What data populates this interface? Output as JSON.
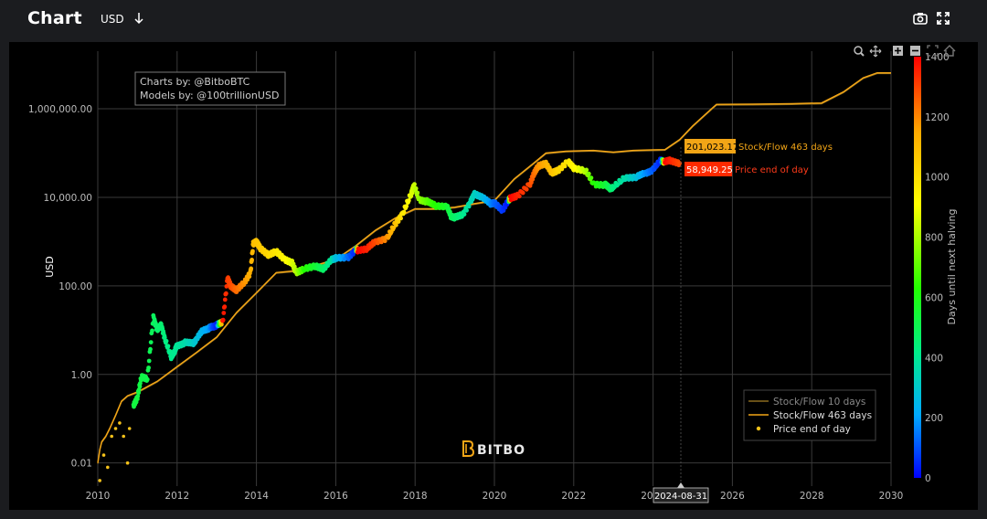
{
  "header": {
    "title": "Chart",
    "currency": "USD",
    "icons": [
      "arrow-down-icon",
      "camera-icon",
      "expand-icon"
    ]
  },
  "credits": {
    "line1": "Charts by: @BitboBTC",
    "line2": "Models by: @100trillionUSD"
  },
  "watermark": "BITBO",
  "chart_data": {
    "type": "line",
    "ylabel": "USD",
    "xlabel": "",
    "yscale": "log",
    "xlim": [
      2010,
      2030
    ],
    "ylim": [
      0.003,
      20000000
    ],
    "grid": true,
    "x_ticks": [
      2010,
      2012,
      2014,
      2016,
      2018,
      2020,
      2022,
      2024,
      2026,
      2028,
      2030
    ],
    "x_tick_labels": [
      "2010",
      "2012",
      "2014",
      "2016",
      "2018",
      "2020",
      "2022",
      "2024",
      "2026",
      "2028",
      "2030"
    ],
    "y_ticks": [
      0.01,
      1,
      100,
      10000,
      1000000
    ],
    "y_tick_labels": [
      "0.01",
      "1.00",
      "100.00",
      "10,000.00",
      "1,000,000.00"
    ],
    "colorbar": {
      "label": "Days until next halving",
      "min": 0,
      "max": 1400,
      "ticks": [
        0,
        200,
        400,
        600,
        800,
        1000,
        1200,
        1400
      ],
      "tick_labels": [
        "0",
        "200",
        "400",
        "600",
        "800",
        "1000",
        "1200",
        "1400"
      ],
      "colors": [
        "#0000ff",
        "#00aaff",
        "#00ee88",
        "#22ff00",
        "#ffff00",
        "#ffaa00",
        "#ff0000"
      ]
    },
    "hover": {
      "x_label": "2024-08-31",
      "sf463_value": "201,023.17",
      "sf463_label": "Stock/Flow 463 days",
      "price_value": "58,949.25",
      "price_label": "Price end of day"
    },
    "legend": {
      "placement": "bottom-right",
      "entries": [
        {
          "name": "Stock/Flow 10 days",
          "color": "#8a6a1f",
          "style": "line"
        },
        {
          "name": "Stock/Flow 463 days",
          "color": "#f2a516",
          "style": "line"
        },
        {
          "name": "Price end of day",
          "color": "#f5c21a",
          "style": "marker"
        }
      ]
    },
    "series": [
      {
        "name": "Stock/Flow 463 days",
        "color": "#f2a516",
        "points": [
          [
            2010.0,
            0.01
          ],
          [
            2010.05,
            0.02
          ],
          [
            2010.1,
            0.03
          ],
          [
            2010.2,
            0.04
          ],
          [
            2010.3,
            0.06
          ],
          [
            2010.45,
            0.12
          ],
          [
            2010.6,
            0.25
          ],
          [
            2010.75,
            0.33
          ],
          [
            2011.0,
            0.4
          ],
          [
            2011.5,
            0.7
          ],
          [
            2012.0,
            1.5
          ],
          [
            2012.5,
            3.2
          ],
          [
            2013.0,
            7
          ],
          [
            2013.5,
            25
          ],
          [
            2014.0,
            70
          ],
          [
            2014.5,
            200
          ],
          [
            2015.0,
            220
          ],
          [
            2015.5,
            290
          ],
          [
            2016.0,
            400
          ],
          [
            2016.5,
            800
          ],
          [
            2017.0,
            1800
          ],
          [
            2017.5,
            3400
          ],
          [
            2018.0,
            5500
          ],
          [
            2018.5,
            5500
          ],
          [
            2019.0,
            6000
          ],
          [
            2019.5,
            7200
          ],
          [
            2020.0,
            8500
          ],
          [
            2020.5,
            26000
          ],
          [
            2021.0,
            60000
          ],
          [
            2021.3,
            100000
          ],
          [
            2021.8,
            110000
          ],
          [
            2022.5,
            115000
          ],
          [
            2023.0,
            105000
          ],
          [
            2023.5,
            115000
          ],
          [
            2024.0,
            118000
          ],
          [
            2024.3,
            120000
          ],
          [
            2024.67,
            201023
          ],
          [
            2025.0,
            410000
          ],
          [
            2025.5,
            1050000
          ],
          [
            2025.6,
            1250000
          ],
          [
            2026.5,
            1270000
          ],
          [
            2027.5,
            1300000
          ],
          [
            2028.25,
            1350000
          ],
          [
            2028.8,
            2400000
          ],
          [
            2029.3,
            5000000
          ],
          [
            2029.65,
            6500000
          ],
          [
            2030.0,
            6500000
          ]
        ]
      },
      {
        "name": "Price end of day",
        "colorscale_by": "days_until_next_halving",
        "points": [
          [
            2010.05,
            0.004,
            700
          ],
          [
            2010.15,
            0.015,
            720
          ],
          [
            2010.25,
            0.008,
            700
          ],
          [
            2010.35,
            0.04,
            680
          ],
          [
            2010.45,
            0.06,
            660
          ],
          [
            2010.55,
            0.08,
            640
          ],
          [
            2010.65,
            0.04,
            620
          ],
          [
            2010.75,
            0.01,
            600
          ],
          [
            2010.8,
            0.06,
            600
          ],
          [
            2010.9,
            0.2,
            590
          ],
          [
            2011.0,
            0.3,
            590
          ],
          [
            2011.1,
            0.9,
            580
          ],
          [
            2011.25,
            0.8,
            570
          ],
          [
            2011.4,
            20,
            540
          ],
          [
            2011.5,
            10,
            520
          ],
          [
            2011.6,
            13,
            510
          ],
          [
            2011.7,
            6,
            480
          ],
          [
            2011.85,
            2.5,
            460
          ],
          [
            2011.95,
            3.5,
            450
          ],
          [
            2012.0,
            4.5,
            440
          ],
          [
            2012.2,
            5.2,
            400
          ],
          [
            2012.4,
            5,
            350
          ],
          [
            2012.5,
            6.5,
            310
          ],
          [
            2012.65,
            10,
            260
          ],
          [
            2012.8,
            11,
            220
          ],
          [
            2012.9,
            12,
            100
          ],
          [
            2013.0,
            13,
            40
          ],
          [
            2013.15,
            15,
            1380
          ],
          [
            2013.27,
            150,
            1320
          ],
          [
            2013.35,
            100,
            1300
          ],
          [
            2013.5,
            80,
            1250
          ],
          [
            2013.7,
            120,
            1200
          ],
          [
            2013.85,
            200,
            1150
          ],
          [
            2013.92,
            900,
            1120
          ],
          [
            2014.0,
            1000,
            1100
          ],
          [
            2014.1,
            700,
            1080
          ],
          [
            2014.3,
            500,
            1040
          ],
          [
            2014.5,
            600,
            1000
          ],
          [
            2014.7,
            400,
            950
          ],
          [
            2014.9,
            330,
            900
          ],
          [
            2015.0,
            200,
            850
          ],
          [
            2015.2,
            240,
            700
          ],
          [
            2015.5,
            280,
            600
          ],
          [
            2015.7,
            240,
            520
          ],
          [
            2015.9,
            400,
            420
          ],
          [
            2016.0,
            420,
            300
          ],
          [
            2016.3,
            430,
            150
          ],
          [
            2016.5,
            650,
            30
          ],
          [
            2016.55,
            640,
            1400
          ],
          [
            2016.8,
            700,
            1350
          ],
          [
            2017.0,
            1000,
            1300
          ],
          [
            2017.3,
            1200,
            1200
          ],
          [
            2017.5,
            2500,
            1100
          ],
          [
            2017.7,
            4500,
            1000
          ],
          [
            2017.9,
            12000,
            900
          ],
          [
            2017.97,
            19000,
            880
          ],
          [
            2018.1,
            9000,
            820
          ],
          [
            2018.3,
            8000,
            760
          ],
          [
            2018.5,
            6500,
            700
          ],
          [
            2018.8,
            6300,
            620
          ],
          [
            2018.9,
            3800,
            560
          ],
          [
            2019.0,
            3500,
            520
          ],
          [
            2019.2,
            4000,
            460
          ],
          [
            2019.4,
            8000,
            400
          ],
          [
            2019.5,
            12000,
            360
          ],
          [
            2019.7,
            10000,
            300
          ],
          [
            2019.9,
            7200,
            200
          ],
          [
            2020.0,
            7500,
            140
          ],
          [
            2020.2,
            5000,
            80
          ],
          [
            2020.35,
            8500,
            20
          ],
          [
            2020.4,
            9500,
            1400
          ],
          [
            2020.6,
            11000,
            1350
          ],
          [
            2020.9,
            20000,
            1300
          ],
          [
            2021.0,
            35000,
            1250
          ],
          [
            2021.1,
            50000,
            1200
          ],
          [
            2021.3,
            58000,
            1150
          ],
          [
            2021.45,
            35000,
            1100
          ],
          [
            2021.6,
            40000,
            1050
          ],
          [
            2021.85,
            65000,
            1000
          ],
          [
            2022.0,
            46000,
            950
          ],
          [
            2022.3,
            40000,
            850
          ],
          [
            2022.5,
            20000,
            700
          ],
          [
            2022.8,
            19000,
            600
          ],
          [
            2022.9,
            16000,
            550
          ],
          [
            2023.0,
            17000,
            480
          ],
          [
            2023.3,
            28000,
            400
          ],
          [
            2023.6,
            29000,
            300
          ],
          [
            2023.8,
            35000,
            200
          ],
          [
            2024.0,
            42000,
            120
          ],
          [
            2024.2,
            70000,
            40
          ],
          [
            2024.3,
            63000,
            1400
          ],
          [
            2024.45,
            68000,
            1350
          ],
          [
            2024.67,
            58949,
            1300
          ]
        ]
      }
    ]
  }
}
